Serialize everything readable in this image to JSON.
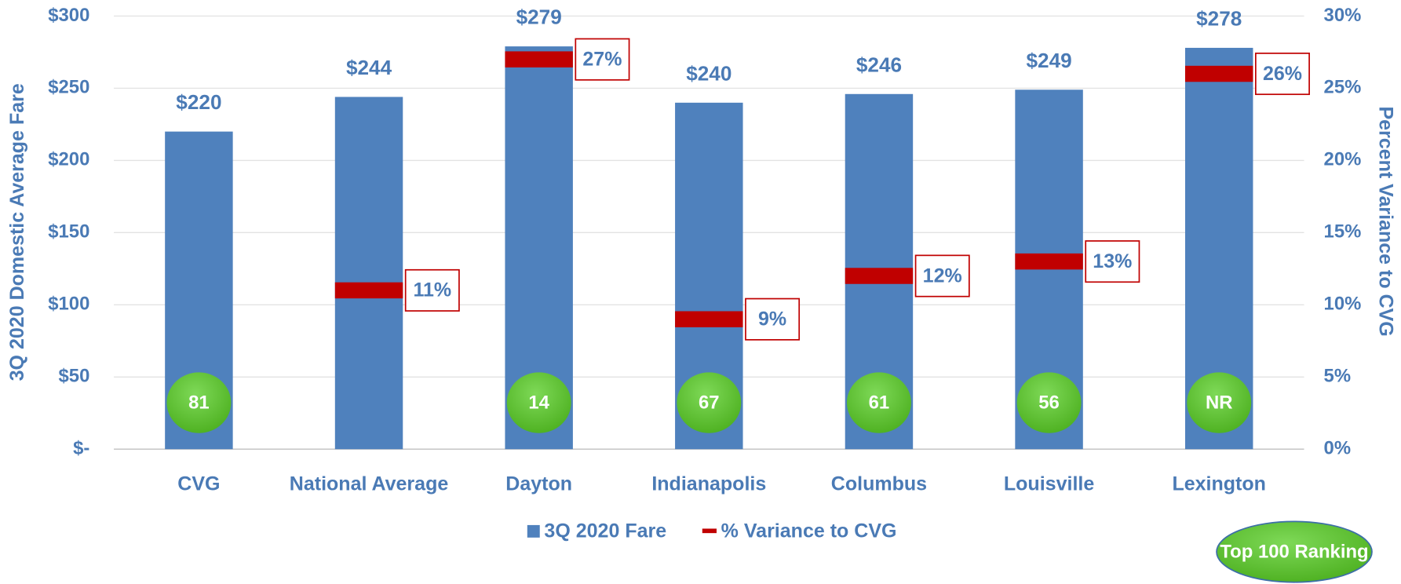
{
  "chart_data": {
    "type": "bar",
    "categories": [
      "CVG",
      "National Average",
      "Dayton",
      "Indianapolis",
      "Columbus",
      "Louisville",
      "Lexington"
    ],
    "series": [
      {
        "name": "3Q 2020 Fare",
        "color": "#4f81bd",
        "values": [
          220,
          244,
          279,
          240,
          246,
          249,
          278
        ],
        "value_labels": [
          "$220",
          "$244",
          "$279",
          "$240",
          "$246",
          "$249",
          "$278"
        ]
      },
      {
        "name": "% Variance to CVG",
        "color": "#c00000",
        "axis": "y2",
        "values": [
          null,
          11,
          27,
          9,
          12,
          13,
          26
        ],
        "value_labels": [
          null,
          "11%",
          "27%",
          "9%",
          "12%",
          "13%",
          "26%"
        ]
      }
    ],
    "rankings": [
      "81",
      null,
      "14",
      "67",
      "61",
      "56",
      "NR"
    ],
    "rankings_legend": "Top 100 Ranking",
    "ylabel": "3Q 2020 Domestic Average Fare",
    "y2label": "Percent Variance to CVG",
    "ylim": [
      0,
      300
    ],
    "yticks": [
      {
        "value": 0,
        "label": "$-"
      },
      {
        "value": 50,
        "label": "$50"
      },
      {
        "value": 100,
        "label": "$100"
      },
      {
        "value": 150,
        "label": "$150"
      },
      {
        "value": 200,
        "label": "$200"
      },
      {
        "value": 250,
        "label": "$250"
      },
      {
        "value": 300,
        "label": "$300"
      }
    ],
    "y2lim": [
      0,
      30
    ],
    "y2ticks": [
      {
        "value": 0,
        "label": "0%"
      },
      {
        "value": 5,
        "label": "5%"
      },
      {
        "value": 10,
        "label": "10%"
      },
      {
        "value": 15,
        "label": "15%"
      },
      {
        "value": 20,
        "label": "20%"
      },
      {
        "value": 25,
        "label": "25%"
      },
      {
        "value": 30,
        "label": "30%"
      }
    ],
    "grid": true,
    "legend": "bottom"
  }
}
